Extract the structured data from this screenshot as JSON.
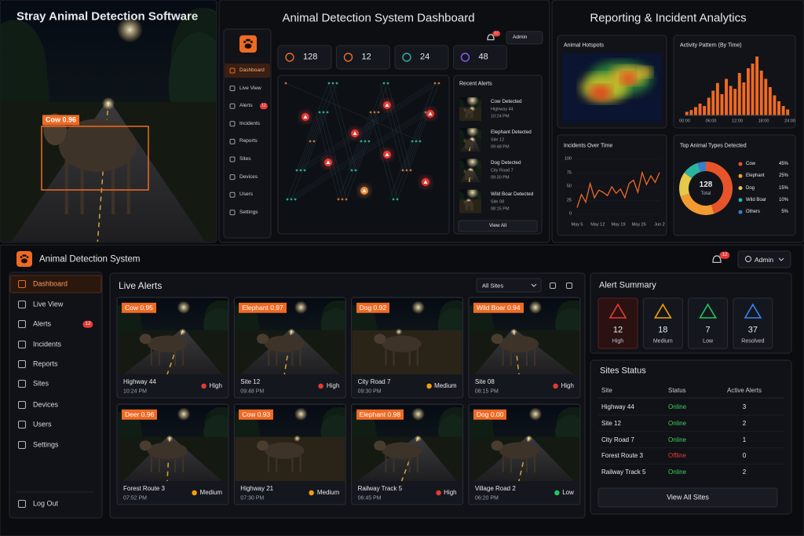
{
  "detection": {
    "title": "Stray Animal Detection Software",
    "box_label": "Cow 0.96"
  },
  "dashboard": {
    "title": "Animal Detection System Dashboard",
    "notif_count": 12,
    "user": "Admin",
    "nav": [
      "Dashboard",
      "Live View",
      "Alerts",
      "Incidents",
      "Reports",
      "Sites",
      "Devices",
      "Users",
      "Settings"
    ],
    "alerts_badge": 12,
    "stats": [
      128,
      12,
      24,
      48
    ],
    "recent_alerts": {
      "title": "Recent Alerts",
      "items": [
        {
          "title": "Cow Detected",
          "site": "Highway 44",
          "time": "10:24 PM"
        },
        {
          "title": "Elephant Detected",
          "site": "Site 12",
          "time": "09:48 PM"
        },
        {
          "title": "Dog Detected",
          "site": "City Road 7",
          "time": "09:30 PM"
        },
        {
          "title": "Wild Boar Detected",
          "site": "Site 08",
          "time": "08:15 PM"
        }
      ],
      "button": "View All"
    }
  },
  "analytics": {
    "title": "Reporting & Incident Analytics",
    "hotspots": {
      "title": "Animal Hotspots"
    },
    "activity": {
      "title": "Activity Pattern (By Time)",
      "xticks": [
        "00:00",
        "06:00",
        "12:00",
        "18:00",
        "24:00"
      ],
      "values": [
        6,
        9,
        14,
        20,
        16,
        30,
        42,
        55,
        36,
        62,
        50,
        45,
        72,
        56,
        80,
        88,
        100,
        76,
        62,
        48,
        34,
        24,
        16,
        10
      ],
      "color": "#ef6a24"
    },
    "incidents": {
      "title": "Incidents Over Time",
      "ylim": [
        0,
        100
      ],
      "yticks": [
        0,
        25,
        50,
        75,
        100
      ],
      "xticks": [
        "May 5",
        "May 12",
        "May 19",
        "May 26",
        "Jun 2"
      ],
      "values": [
        12,
        36,
        22,
        56,
        30,
        44,
        40,
        34,
        50,
        38,
        46,
        30,
        56,
        62,
        40,
        76,
        54,
        70,
        58,
        76
      ],
      "color": "#ef6a24"
    },
    "types": {
      "title": "Top Animal Types Detected",
      "total": 128,
      "total_label": "Total",
      "names": [
        "Cow",
        "Elephant",
        "Dog",
        "Wild Boar",
        "Others"
      ],
      "values": [
        45,
        25,
        15,
        10,
        5
      ],
      "value_labels": [
        "45%",
        "25%",
        "15%",
        "10%",
        "5%"
      ],
      "colors": [
        "#e8542a",
        "#f29b30",
        "#e6c84a",
        "#2bb3a3",
        "#3d7cc9"
      ]
    }
  },
  "app": {
    "title": "Animal Detection System",
    "notif_count": 12,
    "user": "Admin",
    "nav": [
      "Dashboard",
      "Live View",
      "Alerts",
      "Incidents",
      "Reports",
      "Sites",
      "Devices",
      "Users",
      "Settings"
    ],
    "alerts_badge": 12,
    "logout": "Log Out",
    "live_alerts": {
      "title": "Live Alerts",
      "filter": "All Sites",
      "cards": [
        {
          "label": "Cow 0.95",
          "site": "Highway 44",
          "time": "10:24 PM",
          "severity": "High"
        },
        {
          "label": "Elephant 0.97",
          "site": "Site 12",
          "time": "09:48 PM",
          "severity": "High"
        },
        {
          "label": "Dog 0.92",
          "site": "City Road 7",
          "time": "09:30 PM",
          "severity": "Medium"
        },
        {
          "label": "Wild Boar 0.94",
          "site": "Site 08",
          "time": "08:15 PM",
          "severity": "High"
        },
        {
          "label": "Deer 0.96",
          "site": "Forest Route 3",
          "time": "07:52 PM",
          "severity": "Medium"
        },
        {
          "label": "Cow 0.93",
          "site": "Highway 21",
          "time": "07:30 PM",
          "severity": "Medium"
        },
        {
          "label": "Elephant 0.98",
          "site": "Railway Track 5",
          "time": "06:45 PM",
          "severity": "High"
        },
        {
          "label": "Dog 0.00",
          "site": "Village Road 2",
          "time": "06:20 PM",
          "severity": "Low"
        }
      ]
    },
    "summary": {
      "title": "Alert Summary",
      "items": [
        {
          "value": 12,
          "label": "High",
          "color": "#e53935"
        },
        {
          "value": 18,
          "label": "Medium",
          "color": "#f59e0b"
        },
        {
          "value": 7,
          "label": "Low",
          "color": "#22c55e"
        },
        {
          "value": 37,
          "label": "Resolved",
          "color": "#3b82f6"
        }
      ]
    },
    "sites": {
      "title": "Sites Status",
      "columns": [
        "Site",
        "Status",
        "Active Alerts"
      ],
      "status_colors": {
        "Online": "#3ecf5c",
        "Offline": "#e53935"
      },
      "rows": [
        {
          "site": "Highway 44",
          "status": "Online",
          "alerts": 3
        },
        {
          "site": "Site 12",
          "status": "Online",
          "alerts": 2
        },
        {
          "site": "City Road 7",
          "status": "Online",
          "alerts": 1
        },
        {
          "site": "Forest Route 3",
          "status": "Offline",
          "alerts": 0
        },
        {
          "site": "Railway Track 5",
          "status": "Online",
          "alerts": 2
        }
      ],
      "button": "View All Sites"
    }
  }
}
